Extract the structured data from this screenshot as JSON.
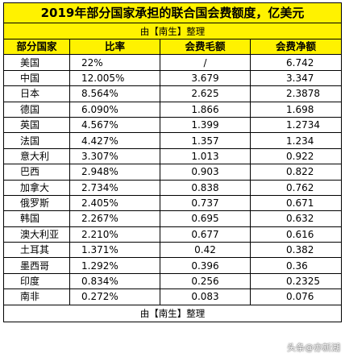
{
  "title": "2019年部分国家承担的联合国会费额度，亿美元",
  "subtitle": "由【南生】整理",
  "headers": [
    "部分国家",
    "比率",
    "会费毛额",
    "会费净额"
  ],
  "rows": [
    {
      "country": "美国",
      "rate": "22%",
      "gross": "/",
      "net": "6.742"
    },
    {
      "country": "中国",
      "rate": "12.005%",
      "gross": "3.679",
      "net": "3.347"
    },
    {
      "country": "日本",
      "rate": "8.564%",
      "gross": "2.625",
      "net": "2.3878"
    },
    {
      "country": "德国",
      "rate": "6.090%",
      "gross": "1.866",
      "net": "1.698"
    },
    {
      "country": "英国",
      "rate": "4.567%",
      "gross": "1.399",
      "net": "1.2734"
    },
    {
      "country": "法国",
      "rate": "4.427%",
      "gross": "1.357",
      "net": "1.234"
    },
    {
      "country": "意大利",
      "rate": "3.307%",
      "gross": "1.013",
      "net": "0.922"
    },
    {
      "country": "巴西",
      "rate": "2.948%",
      "gross": "0.903",
      "net": "0.822"
    },
    {
      "country": "加拿大",
      "rate": "2.734%",
      "gross": "0.838",
      "net": "0.762"
    },
    {
      "country": "俄罗斯",
      "rate": "2.405%",
      "gross": "0.737",
      "net": "0.671"
    },
    {
      "country": "韩国",
      "rate": "2.267%",
      "gross": "0.695",
      "net": "0.632"
    },
    {
      "country": "澳大利亚",
      "rate": "2.210%",
      "gross": "0.677",
      "net": "0.616"
    },
    {
      "country": "土耳其",
      "rate": "1.371%",
      "gross": "0.42",
      "net": "0.382"
    },
    {
      "country": "墨西哥",
      "rate": "1.292%",
      "gross": "0.396",
      "net": "0.36"
    },
    {
      "country": "印度",
      "rate": "0.834%",
      "gross": "0.256",
      "net": "0.2325"
    },
    {
      "country": "南非",
      "rate": "0.272%",
      "gross": "0.083",
      "net": "0.076"
    }
  ],
  "footer": "由【南生】整理",
  "watermark": "头条@亦新湖"
}
